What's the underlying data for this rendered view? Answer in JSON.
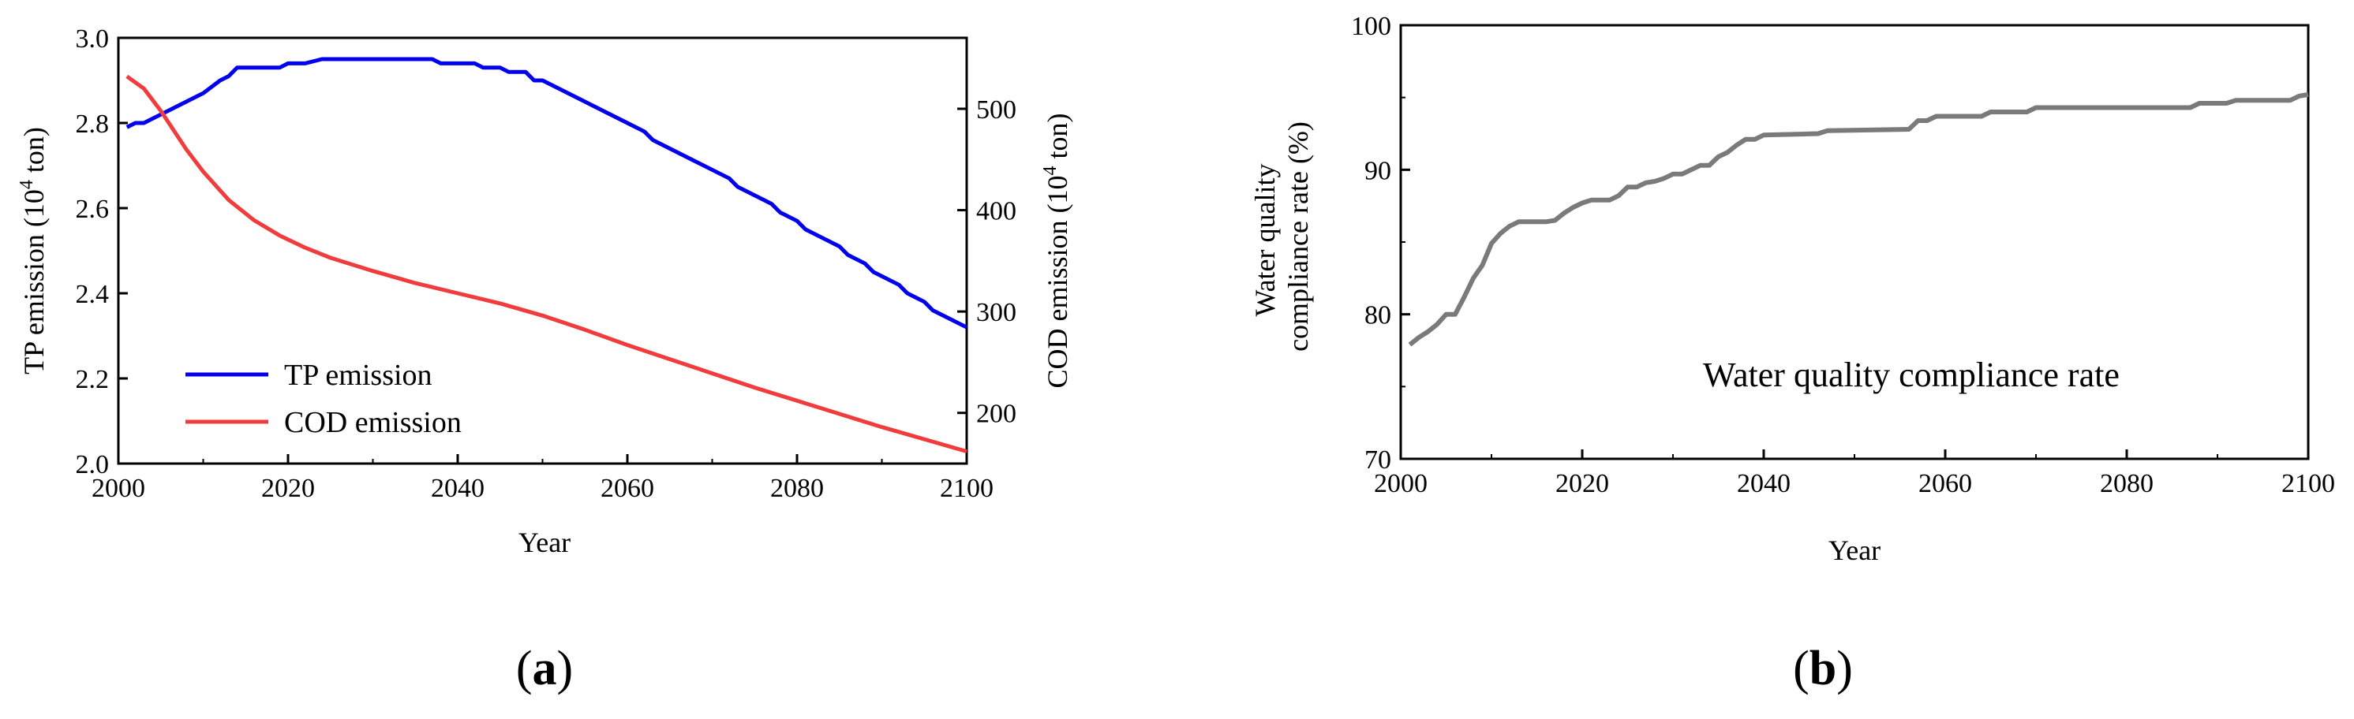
{
  "chart_data": [
    {
      "type": "line",
      "panel_label": "a",
      "title": "",
      "xlabel": "Year",
      "ylabel_left": [
        "TP emission (10",
        "4",
        " ton)"
      ],
      "ylabel_right": [
        "COD emission (10",
        "4",
        " ton)"
      ],
      "xlim": [
        2000,
        2100
      ],
      "ylim_left": [
        2.0,
        3.0
      ],
      "ylim_right": [
        150,
        570
      ],
      "xticks": [
        "2000",
        "2020",
        "2040",
        "2060",
        "2080",
        "2100"
      ],
      "yticks_left": [
        "2.0",
        "2.2",
        "2.4",
        "2.6",
        "2.8",
        "3.0"
      ],
      "yticks_right": [
        "200",
        "300",
        "400",
        "500"
      ],
      "legend": {
        "placement": "bottom-left",
        "entries": [
          "TP emission",
          "COD emission"
        ]
      },
      "series": [
        {
          "name": "TP emission",
          "axis": "left",
          "color": "#0000ee",
          "x": [
            2001,
            2002,
            2003,
            2005,
            2007,
            2010,
            2012,
            2013,
            2014,
            2016,
            2019,
            2020,
            2022,
            2024,
            2030,
            2035,
            2037,
            2038,
            2042,
            2043,
            2045,
            2046,
            2048,
            2049,
            2050,
            2055,
            2060,
            2062,
            2063,
            2068,
            2072,
            2073,
            2077,
            2078,
            2080,
            2081,
            2083,
            2085,
            2086,
            2088,
            2089,
            2092,
            2093,
            2095,
            2096,
            2098,
            2100
          ],
          "values": [
            2.79,
            2.8,
            2.8,
            2.82,
            2.84,
            2.87,
            2.9,
            2.91,
            2.93,
            2.93,
            2.93,
            2.94,
            2.94,
            2.95,
            2.95,
            2.95,
            2.95,
            2.94,
            2.94,
            2.93,
            2.93,
            2.92,
            2.92,
            2.9,
            2.9,
            2.85,
            2.8,
            2.78,
            2.76,
            2.71,
            2.67,
            2.65,
            2.61,
            2.59,
            2.57,
            2.55,
            2.53,
            2.51,
            2.49,
            2.47,
            2.45,
            2.42,
            2.4,
            2.38,
            2.36,
            2.34,
            2.32
          ]
        },
        {
          "name": "COD emission",
          "axis": "right",
          "color": "#f03c3c",
          "x": [
            2001,
            2003,
            2005,
            2008,
            2010,
            2013,
            2016,
            2019,
            2022,
            2025,
            2030,
            2035,
            2040,
            2045,
            2050,
            2055,
            2060,
            2065,
            2070,
            2075,
            2080,
            2085,
            2090,
            2095,
            2100
          ],
          "values": [
            532,
            520,
            498,
            460,
            438,
            410,
            390,
            375,
            363,
            353,
            340,
            328,
            318,
            308,
            296,
            282,
            267,
            253,
            239,
            225,
            212,
            199,
            186,
            174,
            162
          ]
        }
      ]
    },
    {
      "type": "line",
      "panel_label": "b",
      "title": "",
      "xlabel": "Year",
      "ylabel": [
        "Water quality",
        "compliance rate (%)"
      ],
      "xlim": [
        2000,
        2100
      ],
      "ylim": [
        70,
        100
      ],
      "xticks": [
        "2000",
        "2020",
        "2040",
        "2060",
        "2080",
        "2100"
      ],
      "yticks": [
        "70",
        "80",
        "90",
        "100"
      ],
      "annotation": "Water quality compliance rate",
      "series": [
        {
          "name": "Water quality compliance rate",
          "color": "#7a7a7a",
          "x": [
            2001,
            2002,
            2003,
            2004,
            2005,
            2006,
            2007,
            2008,
            2009,
            2010,
            2011,
            2012,
            2013,
            2014,
            2016,
            2017,
            2018,
            2019,
            2020,
            2021,
            2022,
            2023,
            2024,
            2025,
            2026,
            2027,
            2028,
            2029,
            2030,
            2031,
            2032,
            2033,
            2034,
            2035,
            2036,
            2037,
            2038,
            2039,
            2040,
            2046,
            2047,
            2056,
            2057,
            2058,
            2059,
            2064,
            2065,
            2069,
            2070,
            2087,
            2088,
            2091,
            2092,
            2098,
            2099,
            2100
          ],
          "values": [
            77.9,
            78.4,
            78.8,
            79.3,
            80.0,
            80.0,
            81.2,
            82.5,
            83.4,
            84.9,
            85.6,
            86.1,
            86.4,
            86.4,
            86.4,
            86.5,
            87.0,
            87.4,
            87.7,
            87.9,
            87.9,
            87.9,
            88.2,
            88.8,
            88.8,
            89.1,
            89.2,
            89.4,
            89.7,
            89.7,
            90.0,
            90.3,
            90.3,
            90.9,
            91.2,
            91.7,
            92.1,
            92.1,
            92.4,
            92.5,
            92.7,
            92.8,
            93.4,
            93.4,
            93.7,
            93.7,
            94.0,
            94.0,
            94.3,
            94.3,
            94.6,
            94.6,
            94.8,
            94.8,
            95.1,
            95.2
          ]
        }
      ]
    }
  ]
}
